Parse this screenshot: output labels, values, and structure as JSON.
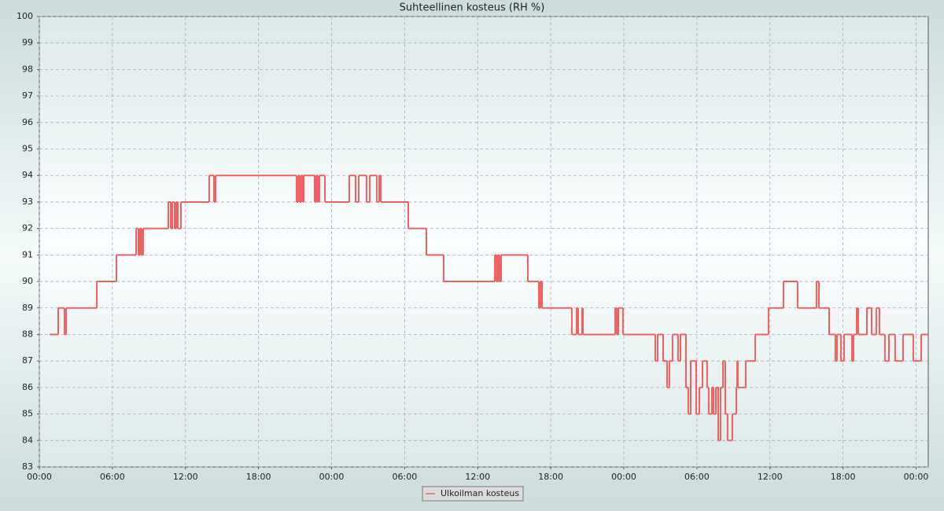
{
  "chart_data": {
    "type": "step",
    "title": "Suhteellinen kosteus (RH %)",
    "x": [
      0.84,
      1.55,
      2.07,
      2.2,
      4.72,
      6.33,
      7.95,
      8.14,
      8.27,
      8.4,
      8.53,
      10.59,
      10.79,
      10.92,
      11.11,
      11.24,
      11.37,
      11.63,
      13.95,
      14.34,
      14.47,
      21.12,
      21.25,
      21.38,
      21.51,
      21.64,
      21.71,
      22.61,
      22.74,
      22.87,
      23,
      23.45,
      25.45,
      25.97,
      26.23,
      26.87,
      27.13,
      27.71,
      27.91,
      28.04,
      30.3,
      31.78,
      33.2,
      37.4,
      37.53,
      37.66,
      37.79,
      37.92,
      40.12,
      41.02,
      41.15,
      41.28,
      43.73,
      44.12,
      44.25,
      44.57,
      44.64,
      47.29,
      47.42,
      47.55,
      47.93,
      50.58,
      50.78,
      51.23,
      51.55,
      51.74,
      52,
      52.45,
      52.65,
      53.1,
      53.29,
      53.49,
      53.94,
      54.2,
      54.46,
      54.84,
      54.97,
      55.23,
      55.36,
      55.56,
      55.75,
      55.94,
      56.14,
      56.33,
      56.52,
      56.91,
      57.24,
      57.3,
      57.36,
      58.01,
      58.79,
      59.88,
      61.11,
      62.27,
      63.82,
      64.02,
      64.86,
      65.37,
      65.5,
      65.83,
      66.09,
      66.73,
      66.86,
      67.12,
      67.25,
      67.96,
      68.35,
      68.73,
      68.99,
      69.44,
      69.77,
      70.28,
      70.93,
      71.77,
      72.42
    ],
    "series": [
      {
        "name": "Ulkoilman kosteus",
        "color": "#f06060",
        "values": [
          88,
          89,
          88,
          89,
          90,
          91,
          92,
          91,
          92,
          91,
          92,
          93,
          92,
          93,
          92,
          93,
          92,
          93,
          94,
          93,
          94,
          93,
          94,
          93,
          94,
          93,
          94,
          93,
          94,
          93,
          94,
          93,
          94,
          93,
          94,
          93,
          94,
          93,
          94,
          93,
          92,
          91,
          90,
          91,
          90,
          91,
          90,
          91,
          90,
          89,
          90,
          89,
          88,
          89,
          88,
          89,
          88,
          89,
          88,
          89,
          88,
          87,
          88,
          87,
          86,
          87,
          88,
          87,
          88,
          86,
          85,
          87,
          85,
          86,
          87,
          86,
          85,
          86,
          85,
          86,
          84,
          86,
          87,
          85,
          84,
          85,
          86,
          87,
          86,
          87,
          88,
          89,
          90,
          89,
          90,
          89,
          88,
          87,
          88,
          87,
          88,
          87,
          88,
          89,
          88,
          89,
          88,
          89,
          88,
          87,
          88,
          87,
          88,
          87,
          88
        ]
      }
    ],
    "xlim": [
      0,
      73
    ],
    "xticks": [
      {
        "value": 0,
        "label": "00:00"
      },
      {
        "value": 6,
        "label": "06:00"
      },
      {
        "value": 12,
        "label": "12:00"
      },
      {
        "value": 18,
        "label": "18:00"
      },
      {
        "value": 24,
        "label": "00:00"
      },
      {
        "value": 30,
        "label": "06:00"
      },
      {
        "value": 36,
        "label": "12:00"
      },
      {
        "value": 42,
        "label": "18:00"
      },
      {
        "value": 48,
        "label": "00:00"
      },
      {
        "value": 54,
        "label": "06:00"
      },
      {
        "value": 60,
        "label": "12:00"
      },
      {
        "value": 66,
        "label": "18:00"
      },
      {
        "value": 72,
        "label": "00:00"
      }
    ],
    "ylim": [
      83,
      100
    ],
    "yticks": [
      83,
      84,
      85,
      86,
      87,
      88,
      89,
      90,
      91,
      92,
      93,
      94,
      95,
      96,
      97,
      98,
      99,
      100
    ],
    "grid": true
  }
}
